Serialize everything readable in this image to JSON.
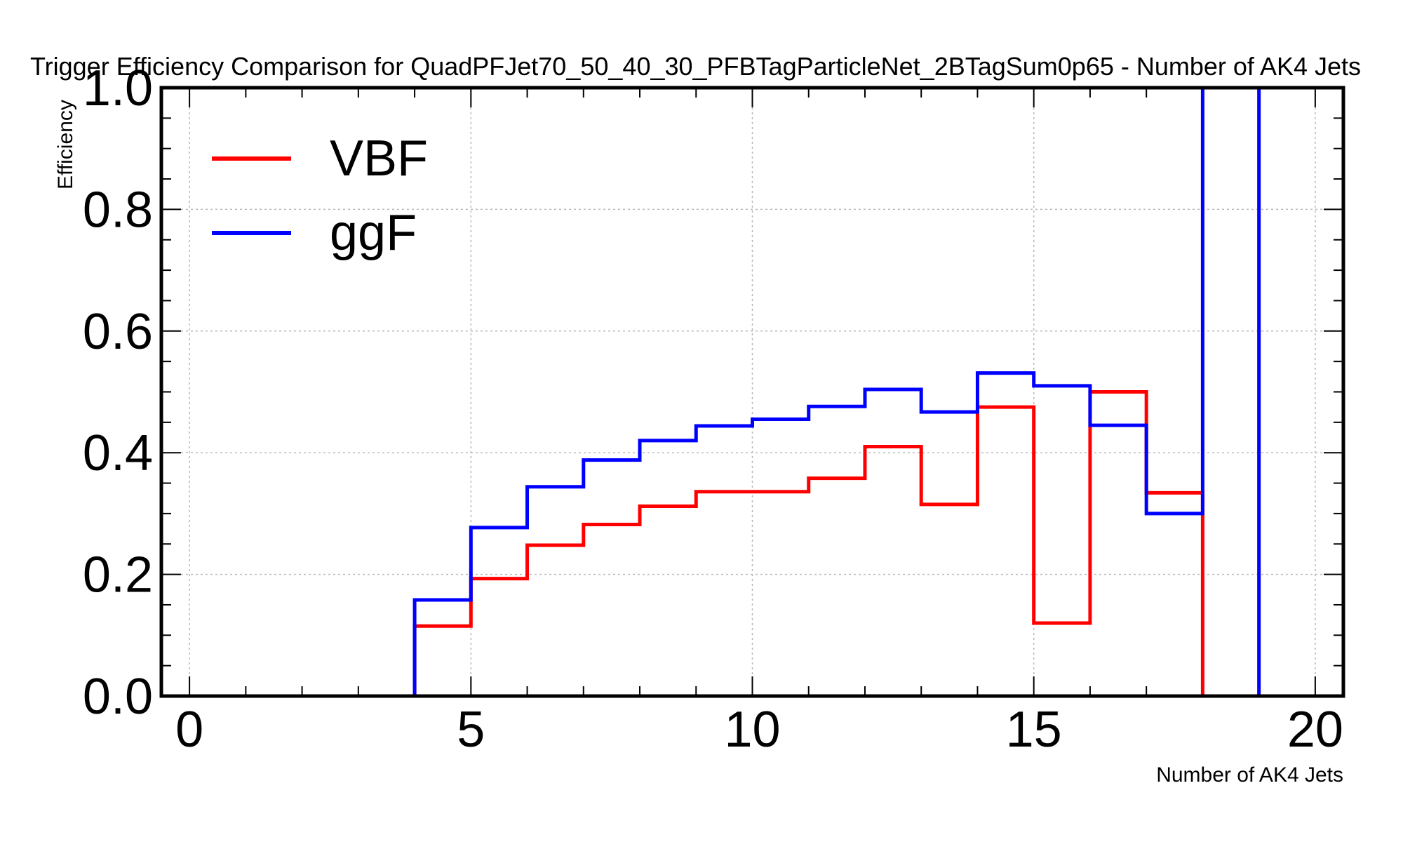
{
  "chart_data": {
    "type": "line",
    "title": "Trigger Efficiency Comparison for QuadPFJet70_50_40_30_PFBTagParticleNet_2BTagSum0p65 - Number of AK4 Jets",
    "xlabel": "Number of AK4 Jets",
    "ylabel": "Efficiency",
    "xlim": [
      -0.5,
      20.5
    ],
    "ylim": [
      0,
      1.0
    ],
    "x_ticks": [
      0,
      5,
      10,
      15,
      20
    ],
    "y_ticks": [
      0.0,
      0.2,
      0.4,
      0.6,
      0.8,
      1.0
    ],
    "x_tick_labels": [
      "0",
      "5",
      "10",
      "15",
      "20"
    ],
    "y_tick_labels": [
      "0.0",
      "0.2",
      "0.4",
      "0.6",
      "0.8",
      "1.0"
    ],
    "grid": true,
    "legend_position": "top-left",
    "bin_edges": [
      0,
      1,
      2,
      3,
      4,
      5,
      6,
      7,
      8,
      9,
      10,
      11,
      12,
      13,
      14,
      15,
      16,
      17,
      18,
      19,
      20
    ],
    "series": [
      {
        "name": "VBF",
        "color": "#ff0000",
        "values": [
          0,
          0,
          0,
          0,
          0.115,
          0.193,
          0.248,
          0.282,
          0.312,
          0.336,
          0.336,
          0.358,
          0.41,
          0.315,
          0.475,
          0.12,
          0.5,
          0.334,
          0,
          0
        ]
      },
      {
        "name": "ggF",
        "color": "#0000ff",
        "values": [
          0,
          0,
          0,
          0,
          0.158,
          0.277,
          0.344,
          0.388,
          0.42,
          0.444,
          0.455,
          0.476,
          0.504,
          0.467,
          0.531,
          0.51,
          0.445,
          0.3,
          1.0,
          0
        ]
      }
    ]
  }
}
